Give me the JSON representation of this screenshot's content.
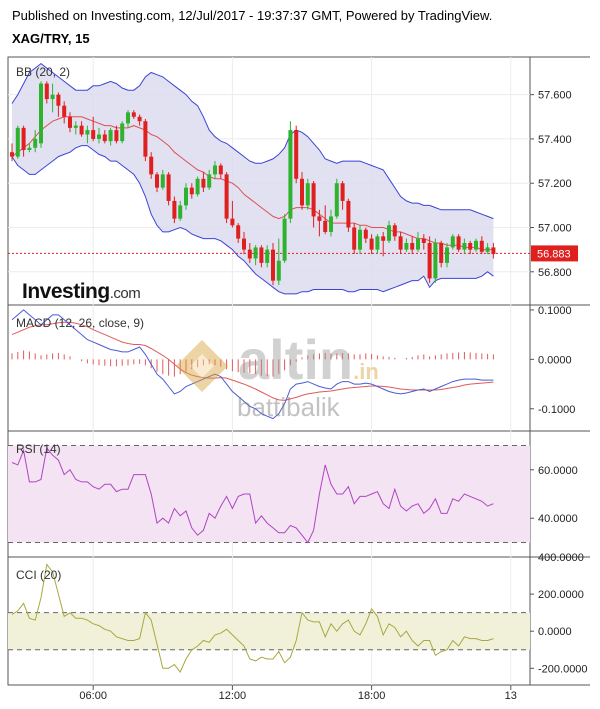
{
  "header": {
    "published": "Published on Investing.com, 12/Jul/2017 - 19:37:37 GMT, Powered by TradingView.",
    "symbol": "XAG/TRY, 15"
  },
  "branding": {
    "investing_word": "Investing",
    "investing_suffix": ".com",
    "watermark_main": "altin",
    "watermark_suffix": ".in",
    "watermark_sub": "battibalik"
  },
  "colors": {
    "up": "#2fb32f",
    "down": "#e01f1f",
    "bb_band": "#3b44d6",
    "bb_fill": "#dcdcee",
    "bb_mid": "#e05050",
    "macd_line": "#4a5bd4",
    "macd_signal": "#e05a5a",
    "macd_hist": "#e05a5a",
    "rsi_line": "#b044c4",
    "rsi_fill": "#f3e3f3",
    "cci_line": "#a8a840",
    "cci_fill": "#f1f1da",
    "last_price_bg": "#e01f1f"
  },
  "chart_data": [
    {
      "type": "candlestick",
      "name": "BB (20, 2)",
      "title": "BB (20, 2)",
      "last_price": "56.883",
      "ylim": [
        56.65,
        57.77
      ],
      "y_ticks": [
        "57.600",
        "57.400",
        "57.200",
        "57.000",
        "56.800"
      ],
      "y_tick_values": [
        57.6,
        57.4,
        57.2,
        57.0,
        56.8
      ],
      "x_ticks": [
        "06:00",
        "12:00",
        "18:00",
        "13"
      ],
      "x_tick_bars": [
        14,
        38,
        62,
        86
      ],
      "candles": [
        [
          57.34,
          57.38,
          57.3,
          57.32
        ],
        [
          57.32,
          57.46,
          57.31,
          57.45
        ],
        [
          57.45,
          57.46,
          57.32,
          57.35
        ],
        [
          57.35,
          57.38,
          57.34,
          57.36
        ],
        [
          57.36,
          57.44,
          57.34,
          57.4
        ],
        [
          57.38,
          57.66,
          57.36,
          57.65
        ],
        [
          57.65,
          57.66,
          57.56,
          57.58
        ],
        [
          57.58,
          57.65,
          57.52,
          57.6
        ],
        [
          57.6,
          57.61,
          57.5,
          57.55
        ],
        [
          57.55,
          57.57,
          57.47,
          57.5
        ],
        [
          57.5,
          57.52,
          57.43,
          57.45
        ],
        [
          57.45,
          57.48,
          57.42,
          57.46
        ],
        [
          57.46,
          57.48,
          57.41,
          57.42
        ],
        [
          57.42,
          57.46,
          57.38,
          57.44
        ],
        [
          57.44,
          57.5,
          57.39,
          57.4
        ],
        [
          57.4,
          57.45,
          57.38,
          57.42
        ],
        [
          57.42,
          57.44,
          57.38,
          57.39
        ],
        [
          57.39,
          57.45,
          57.37,
          57.44
        ],
        [
          57.44,
          57.46,
          57.38,
          57.39
        ],
        [
          57.39,
          57.48,
          57.38,
          57.47
        ],
        [
          57.47,
          57.53,
          57.45,
          57.52
        ],
        [
          57.52,
          57.53,
          57.49,
          57.5
        ],
        [
          57.5,
          57.51,
          57.46,
          57.48
        ],
        [
          57.48,
          57.49,
          57.3,
          57.32
        ],
        [
          57.32,
          57.34,
          57.22,
          57.24
        ],
        [
          57.24,
          57.25,
          57.16,
          57.18
        ],
        [
          57.18,
          57.26,
          57.17,
          57.24
        ],
        [
          57.24,
          57.25,
          57.1,
          57.12
        ],
        [
          57.12,
          57.14,
          57.02,
          57.04
        ],
        [
          57.04,
          57.12,
          57.03,
          57.1
        ],
        [
          57.1,
          57.2,
          57.08,
          57.18
        ],
        [
          57.18,
          57.2,
          57.13,
          57.15
        ],
        [
          57.15,
          57.23,
          57.14,
          57.22
        ],
        [
          57.22,
          57.25,
          57.16,
          57.18
        ],
        [
          57.18,
          57.26,
          57.17,
          57.24
        ],
        [
          57.24,
          57.3,
          57.22,
          57.28
        ],
        [
          57.28,
          57.29,
          57.22,
          57.24
        ],
        [
          57.24,
          57.25,
          57.02,
          57.04
        ],
        [
          57.04,
          57.12,
          57.0,
          57.01
        ],
        [
          57.01,
          57.02,
          56.93,
          56.95
        ],
        [
          56.95,
          56.98,
          56.88,
          56.9
        ],
        [
          56.9,
          56.93,
          56.84,
          56.86
        ],
        [
          56.86,
          56.92,
          56.83,
          56.91
        ],
        [
          56.91,
          56.92,
          56.82,
          56.84
        ],
        [
          56.84,
          56.92,
          56.82,
          56.9
        ],
        [
          56.9,
          56.93,
          56.74,
          56.76
        ],
        [
          56.76,
          56.95,
          56.74,
          56.85
        ],
        [
          56.85,
          57.06,
          56.84,
          57.04
        ],
        [
          57.04,
          57.48,
          57.02,
          57.44
        ],
        [
          57.44,
          57.46,
          57.2,
          57.22
        ],
        [
          57.22,
          57.25,
          57.08,
          57.1
        ],
        [
          57.1,
          57.22,
          57.08,
          57.2
        ],
        [
          57.2,
          57.21,
          57.0,
          57.05
        ],
        [
          57.05,
          57.08,
          56.96,
          57.03
        ],
        [
          57.03,
          57.1,
          56.97,
          56.98
        ],
        [
          56.98,
          57.08,
          56.96,
          57.05
        ],
        [
          57.05,
          57.22,
          57.04,
          57.2
        ],
        [
          57.2,
          57.21,
          57.08,
          57.12
        ],
        [
          57.12,
          57.13,
          56.98,
          57.0
        ],
        [
          57.0,
          57.02,
          56.88,
          56.9
        ],
        [
          56.9,
          57.01,
          56.88,
          56.99
        ],
        [
          56.99,
          57.0,
          56.93,
          56.95
        ],
        [
          56.95,
          56.97,
          56.88,
          56.9
        ],
        [
          56.9,
          56.97,
          56.88,
          56.96
        ],
        [
          56.96,
          56.98,
          56.87,
          56.94
        ],
        [
          56.94,
          57.03,
          56.93,
          57.01
        ],
        [
          57.01,
          57.02,
          56.94,
          56.96
        ],
        [
          56.96,
          56.98,
          56.88,
          56.9
        ],
        [
          56.9,
          56.95,
          56.89,
          56.93
        ],
        [
          56.93,
          56.96,
          56.88,
          56.9
        ],
        [
          56.9,
          56.98,
          56.89,
          56.95
        ],
        [
          56.95,
          56.97,
          56.9,
          56.93
        ],
        [
          56.93,
          56.96,
          56.75,
          56.77
        ],
        [
          56.77,
          56.95,
          56.75,
          56.93
        ],
        [
          56.93,
          56.94,
          56.82,
          56.84
        ],
        [
          56.84,
          56.93,
          56.82,
          56.91
        ],
        [
          56.91,
          56.97,
          56.9,
          56.96
        ],
        [
          56.96,
          56.97,
          56.89,
          56.9
        ],
        [
          56.9,
          56.95,
          56.88,
          56.93
        ],
        [
          56.93,
          56.94,
          56.88,
          56.9
        ],
        [
          56.9,
          56.95,
          56.89,
          56.94
        ],
        [
          56.94,
          56.96,
          56.88,
          56.89
        ],
        [
          56.89,
          56.93,
          56.88,
          56.91
        ],
        [
          56.91,
          56.93,
          56.86,
          56.88
        ]
      ],
      "bb_upper": [
        57.56,
        57.6,
        57.65,
        57.7,
        57.72,
        57.74,
        57.72,
        57.7,
        57.68,
        57.66,
        57.64,
        57.62,
        57.62,
        57.62,
        57.64,
        57.64,
        57.65,
        57.66,
        57.65,
        57.63,
        57.62,
        57.62,
        57.64,
        57.68,
        57.7,
        57.69,
        57.68,
        57.66,
        57.64,
        57.62,
        57.6,
        57.57,
        57.55,
        57.5,
        57.44,
        57.41,
        57.39,
        57.38,
        57.36,
        57.34,
        57.32,
        57.3,
        57.29,
        57.29,
        57.3,
        57.31,
        57.33,
        57.36,
        57.42,
        57.44,
        57.43,
        57.41,
        57.38,
        57.35,
        57.31,
        57.3,
        57.29,
        57.3,
        57.3,
        57.3,
        57.3,
        57.29,
        57.28,
        57.27,
        57.26,
        57.22,
        57.18,
        57.14,
        57.12,
        57.11,
        57.11,
        57.1,
        57.1,
        57.09,
        57.08,
        57.08,
        57.08,
        57.08,
        57.08,
        57.08,
        57.07,
        57.06,
        57.05,
        57.04
      ],
      "bb_middle": [
        57.32,
        57.34,
        57.36,
        57.38,
        57.41,
        57.44,
        57.46,
        57.48,
        57.49,
        57.5,
        57.5,
        57.5,
        57.5,
        57.49,
        57.48,
        57.47,
        57.46,
        57.46,
        57.45,
        57.45,
        57.45,
        57.46,
        57.45,
        57.44,
        57.42,
        57.41,
        57.39,
        57.37,
        57.34,
        57.32,
        57.3,
        57.28,
        57.26,
        57.25,
        57.23,
        57.22,
        57.22,
        57.21,
        57.2,
        57.18,
        57.15,
        57.13,
        57.11,
        57.09,
        57.07,
        57.05,
        57.04,
        57.05,
        57.08,
        57.09,
        57.09,
        57.09,
        57.08,
        57.06,
        57.04,
        57.02,
        57.02,
        57.02,
        57.02,
        57.02,
        57.01,
        57.01,
        57.0,
        57.0,
        57.0,
        56.99,
        56.98,
        56.98,
        56.97,
        56.96,
        56.95,
        56.95,
        56.94,
        56.93,
        56.93,
        56.92,
        56.92,
        56.92,
        56.91,
        56.91,
        56.91,
        56.9,
        56.9,
        56.9
      ],
      "bb_lower": [
        57.32,
        57.28,
        57.26,
        57.24,
        57.24,
        57.26,
        57.28,
        57.3,
        57.32,
        57.33,
        57.34,
        57.36,
        57.37,
        57.37,
        57.35,
        57.33,
        57.32,
        57.3,
        57.3,
        57.28,
        57.26,
        57.24,
        57.2,
        57.14,
        57.06,
        57.01,
        56.98,
        56.98,
        56.99,
        57.0,
        56.99,
        56.97,
        56.96,
        56.95,
        56.95,
        56.95,
        56.94,
        56.92,
        56.9,
        56.87,
        56.85,
        56.82,
        56.79,
        56.77,
        56.75,
        56.73,
        56.71,
        56.7,
        56.7,
        56.7,
        56.71,
        56.71,
        56.72,
        56.72,
        56.72,
        56.72,
        56.72,
        56.72,
        56.71,
        56.71,
        56.72,
        56.72,
        56.72,
        56.72,
        56.71,
        56.72,
        56.73,
        56.74,
        56.75,
        56.76,
        56.76,
        56.78,
        56.73,
        56.76,
        56.77,
        56.77,
        56.77,
        56.77,
        56.77,
        56.77,
        56.77,
        56.78,
        56.8,
        56.78
      ]
    },
    {
      "type": "line",
      "name": "MACD (12, 26, close, 9)",
      "title": "MACD (12, 26, close, 9)",
      "ylim": [
        -0.145,
        0.11
      ],
      "y_ticks": [
        "0.1000",
        "0.0000",
        "-0.1000"
      ],
      "y_tick_values": [
        0.1,
        0.0,
        -0.1
      ],
      "macd": [
        0.08,
        0.09,
        0.1,
        0.09,
        0.08,
        0.07,
        0.08,
        0.09,
        0.09,
        0.08,
        0.07,
        0.06,
        0.05,
        0.04,
        0.035,
        0.03,
        0.025,
        0.02,
        0.018,
        0.015,
        0.015,
        0.02,
        0.025,
        0.01,
        -0.01,
        -0.03,
        -0.04,
        -0.055,
        -0.07,
        -0.065,
        -0.055,
        -0.05,
        -0.045,
        -0.04,
        -0.035,
        -0.03,
        -0.035,
        -0.05,
        -0.065,
        -0.075,
        -0.085,
        -0.095,
        -0.1,
        -0.11,
        -0.115,
        -0.12,
        -0.11,
        -0.09,
        -0.06,
        -0.05,
        -0.048,
        -0.045,
        -0.05,
        -0.055,
        -0.058,
        -0.06,
        -0.05,
        -0.045,
        -0.045,
        -0.05,
        -0.05,
        -0.048,
        -0.05,
        -0.055,
        -0.06,
        -0.065,
        -0.068,
        -0.07,
        -0.068,
        -0.065,
        -0.062,
        -0.06,
        -0.065,
        -0.06,
        -0.055,
        -0.05,
        -0.045,
        -0.042,
        -0.04,
        -0.04,
        -0.04,
        -0.042,
        -0.042,
        -0.042
      ],
      "signal": [
        0.05,
        0.055,
        0.06,
        0.065,
        0.068,
        0.07,
        0.07,
        0.072,
        0.074,
        0.075,
        0.075,
        0.073,
        0.07,
        0.066,
        0.06,
        0.055,
        0.05,
        0.045,
        0.04,
        0.035,
        0.032,
        0.03,
        0.03,
        0.028,
        0.022,
        0.015,
        0.008,
        0.0,
        -0.01,
        -0.02,
        -0.027,
        -0.032,
        -0.035,
        -0.037,
        -0.038,
        -0.038,
        -0.037,
        -0.038,
        -0.042,
        -0.046,
        -0.05,
        -0.055,
        -0.06,
        -0.066,
        -0.072,
        -0.078,
        -0.082,
        -0.083,
        -0.08,
        -0.077,
        -0.073,
        -0.07,
        -0.068,
        -0.066,
        -0.065,
        -0.064,
        -0.062,
        -0.06,
        -0.058,
        -0.057,
        -0.056,
        -0.055,
        -0.054,
        -0.054,
        -0.055,
        -0.056,
        -0.058,
        -0.06,
        -0.061,
        -0.062,
        -0.062,
        -0.062,
        -0.062,
        -0.062,
        -0.061,
        -0.059,
        -0.057,
        -0.055,
        -0.052,
        -0.05,
        -0.049,
        -0.048,
        -0.047,
        -0.046
      ],
      "histogram": [
        0.012,
        0.015,
        0.018,
        0.016,
        0.012,
        0.008,
        0.01,
        0.012,
        0.013,
        0.01,
        0.006,
        0.0,
        -0.004,
        -0.008,
        -0.01,
        -0.012,
        -0.013,
        -0.014,
        -0.014,
        -0.013,
        -0.012,
        -0.01,
        -0.009,
        -0.012,
        -0.018,
        -0.025,
        -0.03,
        -0.033,
        -0.035,
        -0.03,
        -0.025,
        -0.02,
        -0.016,
        -0.012,
        -0.01,
        -0.012,
        -0.015,
        -0.02,
        -0.024,
        -0.026,
        -0.027,
        -0.028,
        -0.03,
        -0.033,
        -0.034,
        -0.035,
        -0.03,
        -0.022,
        -0.012,
        -0.005,
        0.004,
        0.008,
        0.01,
        0.012,
        0.013,
        0.012,
        0.012,
        0.013,
        0.012,
        0.01,
        0.01,
        0.012,
        0.011,
        0.008,
        0.006,
        0.005,
        0.003,
        0.0,
        0.003,
        0.005,
        0.008,
        0.01,
        0.006,
        0.008,
        0.01,
        0.012,
        0.013,
        0.014,
        0.015,
        0.014,
        0.013,
        0.012,
        0.011,
        0.01
      ]
    },
    {
      "type": "line",
      "name": "RSI (14)",
      "title": "RSI (14)",
      "ylim": [
        24,
        76
      ],
      "bands": [
        70,
        30
      ],
      "y_ticks": [
        "60.0000",
        "40.0000"
      ],
      "y_tick_values": [
        60,
        40
      ],
      "values": [
        63,
        62,
        68,
        55,
        55,
        56,
        69,
        66,
        64,
        58,
        60,
        56,
        55,
        55,
        53,
        52,
        54,
        54,
        51,
        52,
        52,
        58,
        58,
        58,
        50,
        38,
        40,
        38,
        44,
        41,
        43,
        36,
        33,
        35,
        42,
        40,
        45,
        49,
        44,
        49,
        50,
        50,
        38,
        41,
        38,
        36,
        34,
        34,
        37,
        36,
        33,
        30,
        35,
        50,
        62,
        54,
        50,
        50,
        53,
        46,
        49,
        49,
        50,
        51,
        46,
        44,
        52,
        45,
        43,
        45,
        46,
        42,
        44,
        48,
        42,
        42,
        48,
        47,
        50,
        49,
        48,
        47,
        45,
        46
      ]
    },
    {
      "type": "line",
      "name": "CCI (20)",
      "title": "CCI (20)",
      "ylim": [
        -290,
        400
      ],
      "bands": [
        100,
        -100
      ],
      "y_ticks": [
        "400.0000",
        "200.0000",
        "0.0000",
        "-200.0000"
      ],
      "y_tick_values": [
        400,
        200,
        0,
        -200
      ],
      "values": [
        90,
        110,
        150,
        70,
        60,
        180,
        360,
        320,
        200,
        80,
        100,
        70,
        70,
        60,
        40,
        30,
        10,
        0,
        -30,
        -40,
        -50,
        -50,
        -40,
        100,
        60,
        -70,
        -200,
        -200,
        -180,
        -220,
        -150,
        -100,
        -80,
        -50,
        -60,
        -20,
        -10,
        10,
        -20,
        -50,
        -80,
        -150,
        -160,
        -140,
        -150,
        -150,
        -110,
        -170,
        -140,
        -50,
        100,
        60,
        50,
        50,
        -30,
        40,
        0,
        40,
        60,
        0,
        -20,
        40,
        120,
        80,
        -20,
        40,
        20,
        -30,
        0,
        -50,
        -80,
        -50,
        -50,
        -130,
        -110,
        -100,
        -50,
        -80,
        -30,
        -40,
        -40,
        -50,
        -50,
        -40
      ]
    }
  ]
}
